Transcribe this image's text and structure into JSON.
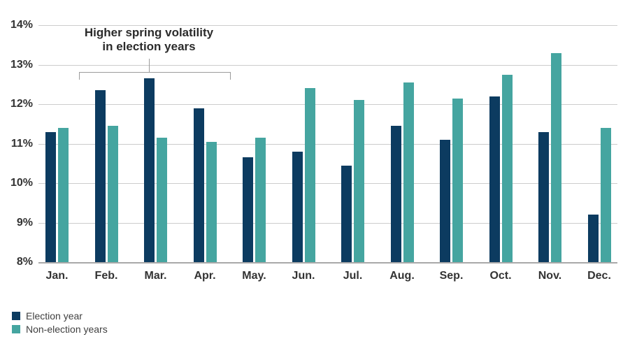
{
  "chart_data": {
    "type": "bar",
    "categories": [
      "Jan.",
      "Feb.",
      "Mar.",
      "Apr.",
      "May.",
      "Jun.",
      "Jul.",
      "Aug.",
      "Sep.",
      "Oct.",
      "Nov.",
      "Dec."
    ],
    "series": [
      {
        "name": "Election year",
        "color": "#0c3b60",
        "values": [
          11.3,
          12.35,
          12.65,
          11.9,
          10.65,
          10.8,
          10.45,
          11.45,
          11.1,
          12.2,
          11.3,
          9.2
        ]
      },
      {
        "name": "Non-election years",
        "color": "#45a5a0",
        "values": [
          11.4,
          11.45,
          11.15,
          11.05,
          11.15,
          12.4,
          12.1,
          12.55,
          12.15,
          12.75,
          13.3,
          11.4
        ]
      }
    ],
    "ylim": [
      8,
      14
    ],
    "y_ticks": [
      {
        "value": 14,
        "label": "14%"
      },
      {
        "value": 13,
        "label": "13%"
      },
      {
        "value": 12,
        "label": "12%"
      },
      {
        "value": 11,
        "label": "11%"
      },
      {
        "value": 10,
        "label": "10%"
      },
      {
        "value": 9,
        "label": "9%"
      },
      {
        "value": 8,
        "label": "8%"
      }
    ],
    "grid": true,
    "legend_position": "bottom-left"
  },
  "annotation": {
    "line1": "Higher spring volatility",
    "line2": "in election years",
    "bracket_from": "Feb.",
    "bracket_to": "Apr."
  },
  "colors": {
    "election_year": "#0c3b60",
    "non_election_years": "#45a5a0",
    "gridline": "#cccccc",
    "axis_line": "#a9a9a9",
    "axis_text": "#333333",
    "annotation_text": "#2b2b2b",
    "bracket": "#9b9b9b"
  }
}
